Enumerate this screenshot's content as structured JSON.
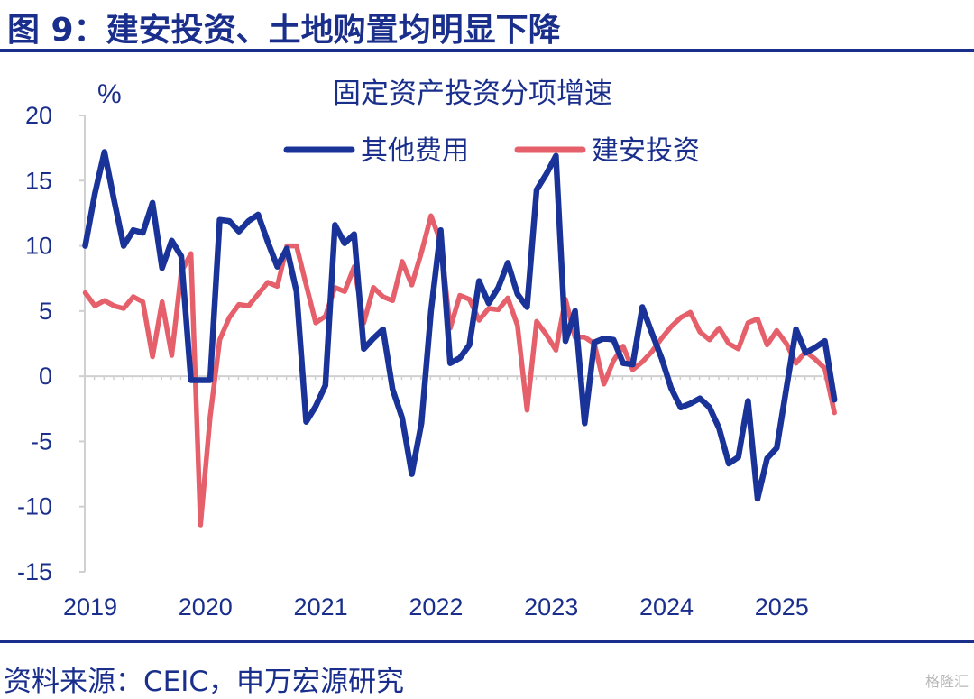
{
  "figure_title": "图 9：建安投资、土地购置均明显下降",
  "source": "资料来源：CEIC，申万宏源研究",
  "watermark": "格隆汇",
  "colors": {
    "brand": "#1a2f8c",
    "series_other": "#1a3399",
    "series_construction": "#e5606a",
    "axis": "#d0d0d0"
  },
  "chart_data": {
    "type": "line",
    "title": "固定资产投资分项增速",
    "ylabel": "%",
    "xlabel": "",
    "ylim": [
      -15,
      20
    ],
    "yticks": [
      20,
      15,
      10,
      5,
      0,
      -5,
      -10,
      -15
    ],
    "ytick_labels": [
      "20",
      "15",
      "10",
      "5",
      "0",
      "-5",
      "-10",
      "-15"
    ],
    "xticks": [
      2019,
      2020,
      2021,
      2022,
      2023,
      2024,
      2025
    ],
    "xtick_labels": [
      "2019",
      "2020",
      "2021",
      "2022",
      "2023",
      "2024",
      "2025"
    ],
    "legend_position": "top-center",
    "grid": false,
    "x_start": "2019-01",
    "series": [
      {
        "name": "其他费用",
        "values": [
          10,
          14,
          17.2,
          13.5,
          10,
          11.2,
          11,
          13.3,
          8.3,
          10.4,
          9.2,
          -0.3,
          -0.3,
          -0.3,
          12,
          11.9,
          11.1,
          11.9,
          12.4,
          10.3,
          8.4,
          9.8,
          6.5,
          -3.5,
          -2.3,
          -0.7,
          11.6,
          10.2,
          10.9,
          2.1,
          2.9,
          3.6,
          -1,
          -3.2,
          -7.5,
          -3.6,
          5,
          11.2,
          1,
          1.4,
          2.4,
          7.3,
          5.6,
          6.8,
          8.7,
          6.3,
          5.3,
          14.3,
          15.5,
          16.9,
          2.7,
          5,
          -3.6,
          2.6,
          2.9,
          2.8,
          1,
          0.9,
          5.3,
          3.3,
          1.4,
          -0.9,
          -2.4,
          -2.1,
          -1.7,
          -2.4,
          -4,
          -6.7,
          -6.2,
          -1.9,
          -9.4,
          -6.3,
          -5.5,
          -0.9,
          3.6,
          1.8,
          2.2,
          2.7,
          -1.8
        ]
      },
      {
        "name": "建安投资",
        "values": [
          6.4,
          5.4,
          5.8,
          5.4,
          5.2,
          6.1,
          5.7,
          1.5,
          5.7,
          1.6,
          8,
          9.4,
          -11.4,
          -3.1,
          2.8,
          4.5,
          5.5,
          5.4,
          6.3,
          7.2,
          6.9,
          10,
          10,
          7,
          4.1,
          4.6,
          6.8,
          6.5,
          8.4,
          4.1,
          6.8,
          6.1,
          5.8,
          8.8,
          7,
          9.5,
          12.3,
          10.3,
          3.7,
          6.2,
          5.9,
          4.3,
          5.2,
          5.1,
          6,
          3.9,
          -2.6,
          4.2,
          3.2,
          2,
          5.9,
          3,
          3,
          2.5,
          -0.6,
          1.2,
          2.3,
          0.5,
          1.1,
          1.9,
          2.9,
          3.8,
          4.5,
          4.9,
          3.4,
          2.8,
          3.7,
          2.5,
          2.1,
          4.1,
          4.4,
          2.4,
          3.5,
          2.5,
          1,
          1.9,
          1.3,
          0.6,
          -2.8
        ]
      }
    ]
  }
}
